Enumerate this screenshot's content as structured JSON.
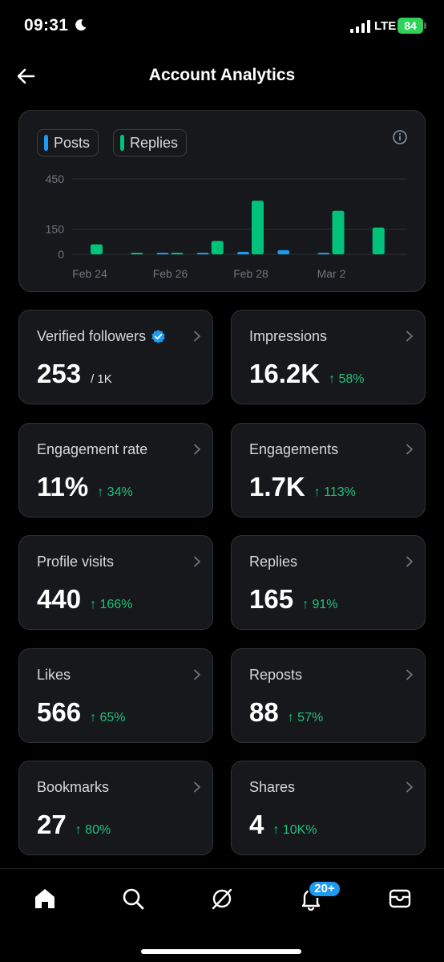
{
  "status_bar": {
    "time": "09:31",
    "network": "LTE",
    "battery": "84"
  },
  "header": {
    "title": "Account Analytics"
  },
  "colors": {
    "posts": "#1d9bf0",
    "replies": "#00c27a",
    "positive": "#22c17a"
  },
  "chart_data": {
    "type": "bar",
    "legend": [
      "Posts",
      "Replies"
    ],
    "legend_placement": "top-left",
    "y_ticks": [
      "450",
      "150",
      "0"
    ],
    "ylim": [
      0,
      450
    ],
    "x_tick_labels": [
      "Feb 24",
      "Feb 26",
      "Feb 28",
      "Mar 2"
    ],
    "categories": [
      "Feb 24",
      "Feb 25",
      "Feb 26",
      "Feb 27",
      "Feb 28",
      "Feb 29",
      "Mar 1",
      "Mar 2"
    ],
    "series": [
      {
        "name": "Posts",
        "values": [
          0,
          0,
          2,
          4,
          15,
          25,
          4,
          0
        ]
      },
      {
        "name": "Replies",
        "values": [
          60,
          6,
          3,
          80,
          320,
          0,
          260,
          160
        ]
      }
    ],
    "grid": true
  },
  "stats": [
    {
      "label": "Verified followers",
      "value": "253",
      "sub": "/ 1K",
      "verified": true
    },
    {
      "label": "Impressions",
      "value": "16.2K",
      "change": "↑ 58%"
    },
    {
      "label": "Engagement rate",
      "value": "11%",
      "change": "↑ 34%"
    },
    {
      "label": "Engagements",
      "value": "1.7K",
      "change": "↑ 113%"
    },
    {
      "label": "Profile visits",
      "value": "440",
      "change": "↑ 166%"
    },
    {
      "label": "Replies",
      "value": "165",
      "change": "↑ 91%"
    },
    {
      "label": "Likes",
      "value": "566",
      "change": "↑ 65%"
    },
    {
      "label": "Reposts",
      "value": "88",
      "change": "↑ 57%"
    },
    {
      "label": "Bookmarks",
      "value": "27",
      "change": "↑ 80%"
    },
    {
      "label": "Shares",
      "value": "4",
      "change": "↑ 10K%"
    }
  ],
  "nav": {
    "items": [
      "home-icon",
      "search-icon",
      "grok-icon",
      "bell-icon",
      "mail-icon"
    ],
    "notification_badge": "20+"
  }
}
